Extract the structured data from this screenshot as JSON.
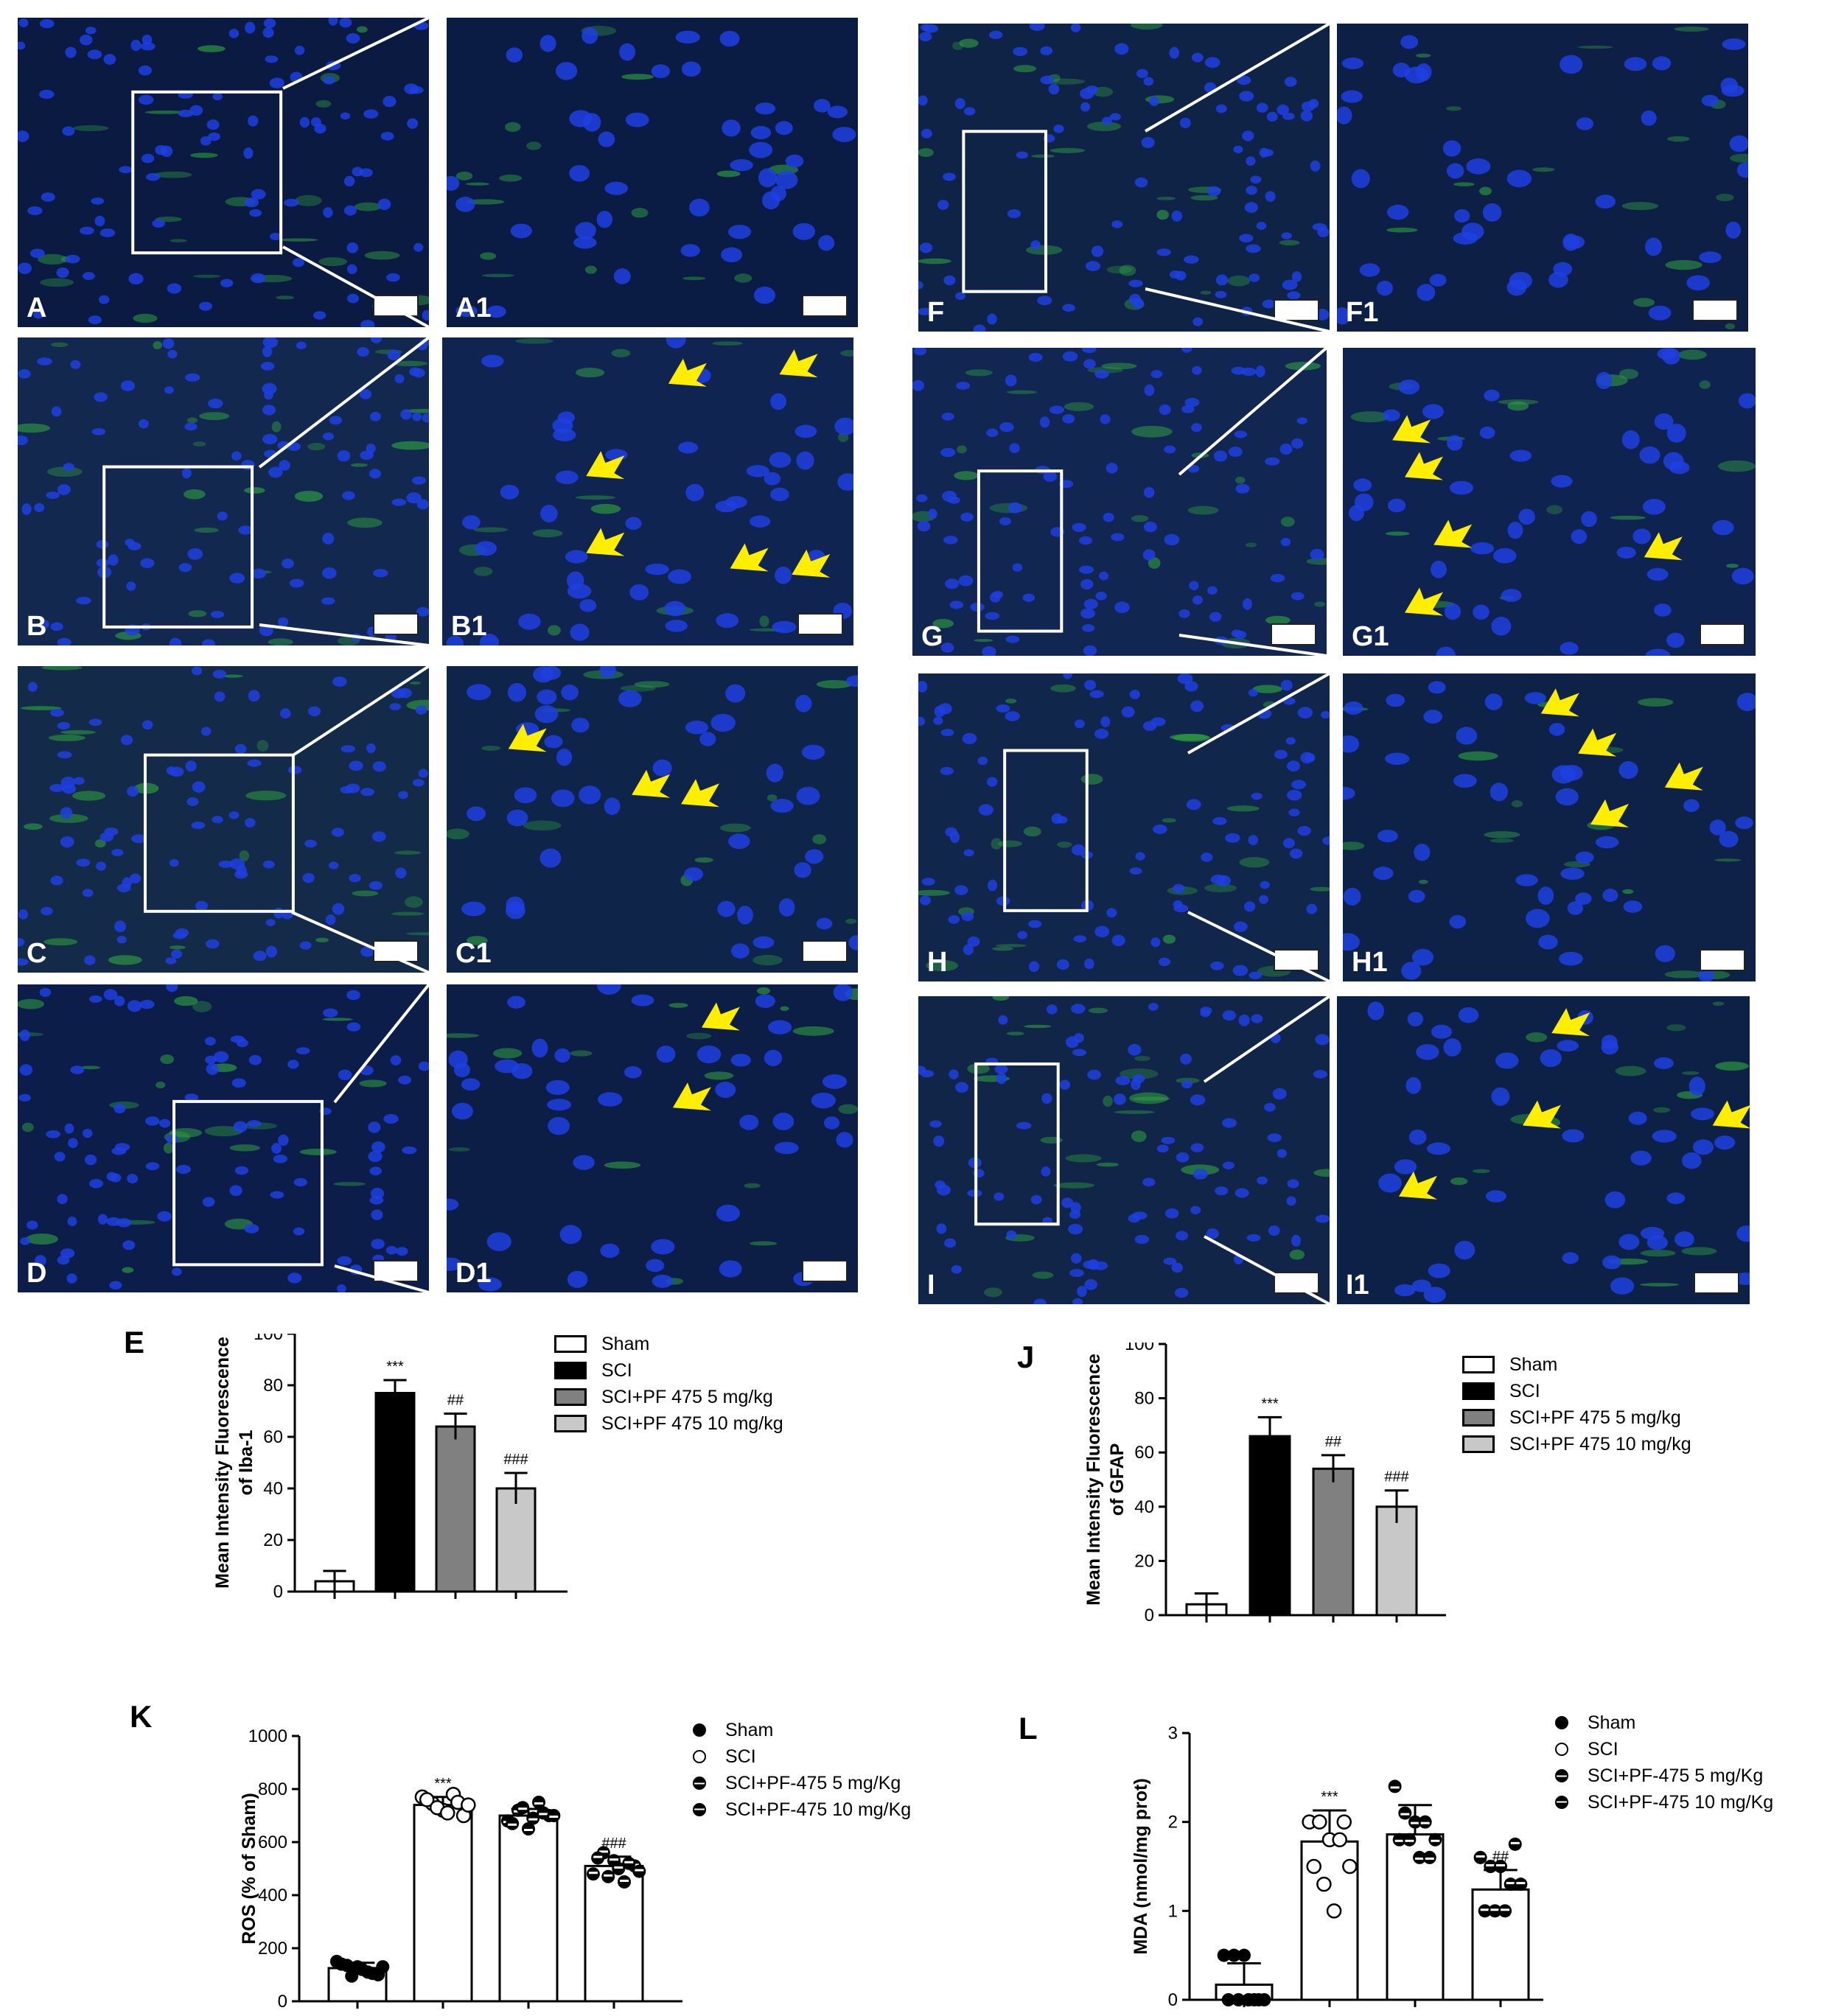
{
  "micro_panels": [
    {
      "id": "A",
      "label": "A",
      "bg": "#0a1a40",
      "arrows": []
    },
    {
      "id": "A1",
      "label": "A1",
      "bg": "#0b1c44",
      "arrows": []
    },
    {
      "id": "B",
      "label": "B",
      "bg": "#13284f",
      "arrows": []
    },
    {
      "id": "B1",
      "label": "B1",
      "bg": "#0f2450",
      "arrows": [
        [
          0.55,
          0.15
        ],
        [
          0.82,
          0.12
        ],
        [
          0.35,
          0.45
        ],
        [
          0.35,
          0.7
        ],
        [
          0.7,
          0.75
        ],
        [
          0.85,
          0.77
        ]
      ]
    },
    {
      "id": "C",
      "label": "C",
      "bg": "#132a48",
      "arrows": []
    },
    {
      "id": "C1",
      "label": "C1",
      "bg": "#0e2449",
      "arrows": [
        [
          0.15,
          0.27
        ],
        [
          0.45,
          0.42
        ],
        [
          0.57,
          0.45
        ]
      ]
    },
    {
      "id": "D",
      "label": "D",
      "bg": "#0c1d4a",
      "arrows": []
    },
    {
      "id": "D1",
      "label": "D1",
      "bg": "#0c1d46",
      "arrows": [
        [
          0.62,
          0.14
        ],
        [
          0.55,
          0.4
        ]
      ]
    },
    {
      "id": "F",
      "label": "F",
      "bg": "#0f2347",
      "arrows": []
    },
    {
      "id": "F1",
      "label": "F1",
      "bg": "#0d1f45",
      "arrows": []
    },
    {
      "id": "G",
      "label": "G",
      "bg": "#112650",
      "arrows": []
    },
    {
      "id": "G1",
      "label": "G1",
      "bg": "#0f2350",
      "arrows": [
        [
          0.12,
          0.3
        ],
        [
          0.15,
          0.42
        ],
        [
          0.22,
          0.64
        ],
        [
          0.15,
          0.86
        ],
        [
          0.73,
          0.68
        ]
      ]
    },
    {
      "id": "H",
      "label": "H",
      "bg": "#10264a",
      "arrows": []
    },
    {
      "id": "H1",
      "label": "H1",
      "bg": "#0d2246",
      "arrows": [
        [
          0.48,
          0.13
        ],
        [
          0.57,
          0.26
        ],
        [
          0.78,
          0.37
        ],
        [
          0.6,
          0.49
        ]
      ]
    },
    {
      "id": "I",
      "label": "I",
      "bg": "#102548",
      "arrows": []
    },
    {
      "id": "I1",
      "label": "I1",
      "bg": "#0d2146",
      "arrows": [
        [
          0.52,
          0.12
        ],
        [
          0.45,
          0.42
        ],
        [
          0.91,
          0.42
        ],
        [
          0.15,
          0.65
        ]
      ]
    }
  ],
  "colors": {
    "nuclei": "#1f3fe0",
    "green": "#2fa040",
    "arrow": "#ffee00",
    "box": "#ffffff"
  },
  "chart_data": [
    {
      "letter": "E",
      "type": "bar",
      "categories": [
        "Sham",
        "SCI",
        "SCI+PF 475 5 mg/kg",
        "SCI+PF 475 10 mg/kg"
      ],
      "values": [
        4,
        77,
        64,
        40
      ],
      "errors": [
        4,
        5,
        5,
        6
      ],
      "annotations": [
        "",
        "***",
        "##",
        "###"
      ],
      "fills": [
        "#ffffff",
        "#000000",
        "#808080",
        "#c8c8c8"
      ],
      "ylabel_lines": [
        "Mean Intensity Fluorescence",
        "of Iba-1"
      ],
      "ylim": [
        0,
        100
      ],
      "yticks": [
        "0",
        "20",
        "40",
        "60",
        "80",
        "100"
      ],
      "legend": [
        "Sham",
        "SCI",
        "SCI+PF 475 5 mg/kg",
        "SCI+PF 475 10 mg/kg"
      ]
    },
    {
      "letter": "J",
      "type": "bar",
      "categories": [
        "Sham",
        "SCI",
        "SCI+PF 475 5 mg/kg",
        "SCI+PF 475 10 mg/kg"
      ],
      "values": [
        4,
        66,
        54,
        40
      ],
      "errors": [
        4,
        7,
        5,
        6
      ],
      "annotations": [
        "",
        "***",
        "##",
        "###"
      ],
      "fills": [
        "#ffffff",
        "#000000",
        "#808080",
        "#c8c8c8"
      ],
      "ylabel_lines": [
        "Mean Intensity Fluorescence",
        "of GFAP"
      ],
      "ylim": [
        0,
        100
      ],
      "yticks": [
        "0",
        "20",
        "40",
        "60",
        "80",
        "100"
      ],
      "legend": [
        "Sham",
        "SCI",
        "SCI+PF 475 5 mg/kg",
        "SCI+PF 475 10 mg/kg"
      ]
    },
    {
      "letter": "K",
      "type": "bar",
      "categories": [
        "Sham",
        "SCI",
        "SCI+PF-475 5 mg/Kg",
        "SCI+PF-475 10 mg/Kg"
      ],
      "values": [
        125,
        740,
        700,
        510
      ],
      "errors": [
        20,
        30,
        25,
        35
      ],
      "annotations": [
        "",
        "***",
        "",
        "###"
      ],
      "points": [
        [
          150,
          135,
          130,
          110,
          100,
          140,
          95,
          120,
          105,
          130
        ],
        [
          770,
          745,
          720,
          780,
          700,
          760,
          730,
          710,
          750,
          740
        ],
        [
          680,
          720,
          650,
          750,
          700,
          670,
          730,
          690,
          710,
          700
        ],
        [
          480,
          560,
          530,
          450,
          510,
          540,
          470,
          500,
          520,
          490
        ]
      ],
      "dot_styles": [
        "solid",
        "open",
        "top",
        "bottom"
      ],
      "ylabel_lines": [
        "ROS (% of Sham)"
      ],
      "ylim": [
        0,
        1000
      ],
      "yticks": [
        "0",
        "200",
        "400",
        "600",
        "800",
        "1000"
      ],
      "legend": [
        "Sham",
        "SCI",
        "SCI+PF-475 5 mg/Kg",
        "SCI+PF-475 10 mg/Kg"
      ]
    },
    {
      "letter": "L",
      "type": "bar",
      "categories": [
        "Sham",
        "SCI",
        "SCI+PF-475 5 mg/Kg",
        "SCI+PF-475 10 mg/Kg"
      ],
      "values": [
        0.17,
        1.78,
        1.86,
        1.24
      ],
      "errors": [
        0.24,
        0.35,
        0.33,
        0.22
      ],
      "annotations": [
        "",
        "***",
        "",
        "##"
      ],
      "points": [
        [
          0.5,
          0.5,
          0.5,
          0,
          0,
          0,
          0,
          0,
          0
        ],
        [
          2.0,
          2.0,
          1.8,
          1.8,
          1.5,
          1.5,
          1.3,
          1.0,
          2.0
        ],
        [
          2.4,
          2.1,
          2.0,
          2.0,
          1.8,
          1.8,
          1.8,
          1.6,
          1.6
        ],
        [
          1.6,
          1.5,
          1.5,
          1.3,
          1.3,
          1.0,
          1.0,
          1.0,
          1.75
        ]
      ],
      "dot_styles": [
        "solid",
        "open",
        "top",
        "bottom"
      ],
      "ylabel_lines": [
        "MDA (nmol/mg prot)"
      ],
      "ylim": [
        0,
        3
      ],
      "yticks": [
        "0",
        "1",
        "2",
        "3"
      ],
      "legend": [
        "Sham",
        "SCI",
        "SCI+PF-475 5 mg/Kg",
        "SCI+PF-475 10 mg/Kg"
      ]
    }
  ]
}
